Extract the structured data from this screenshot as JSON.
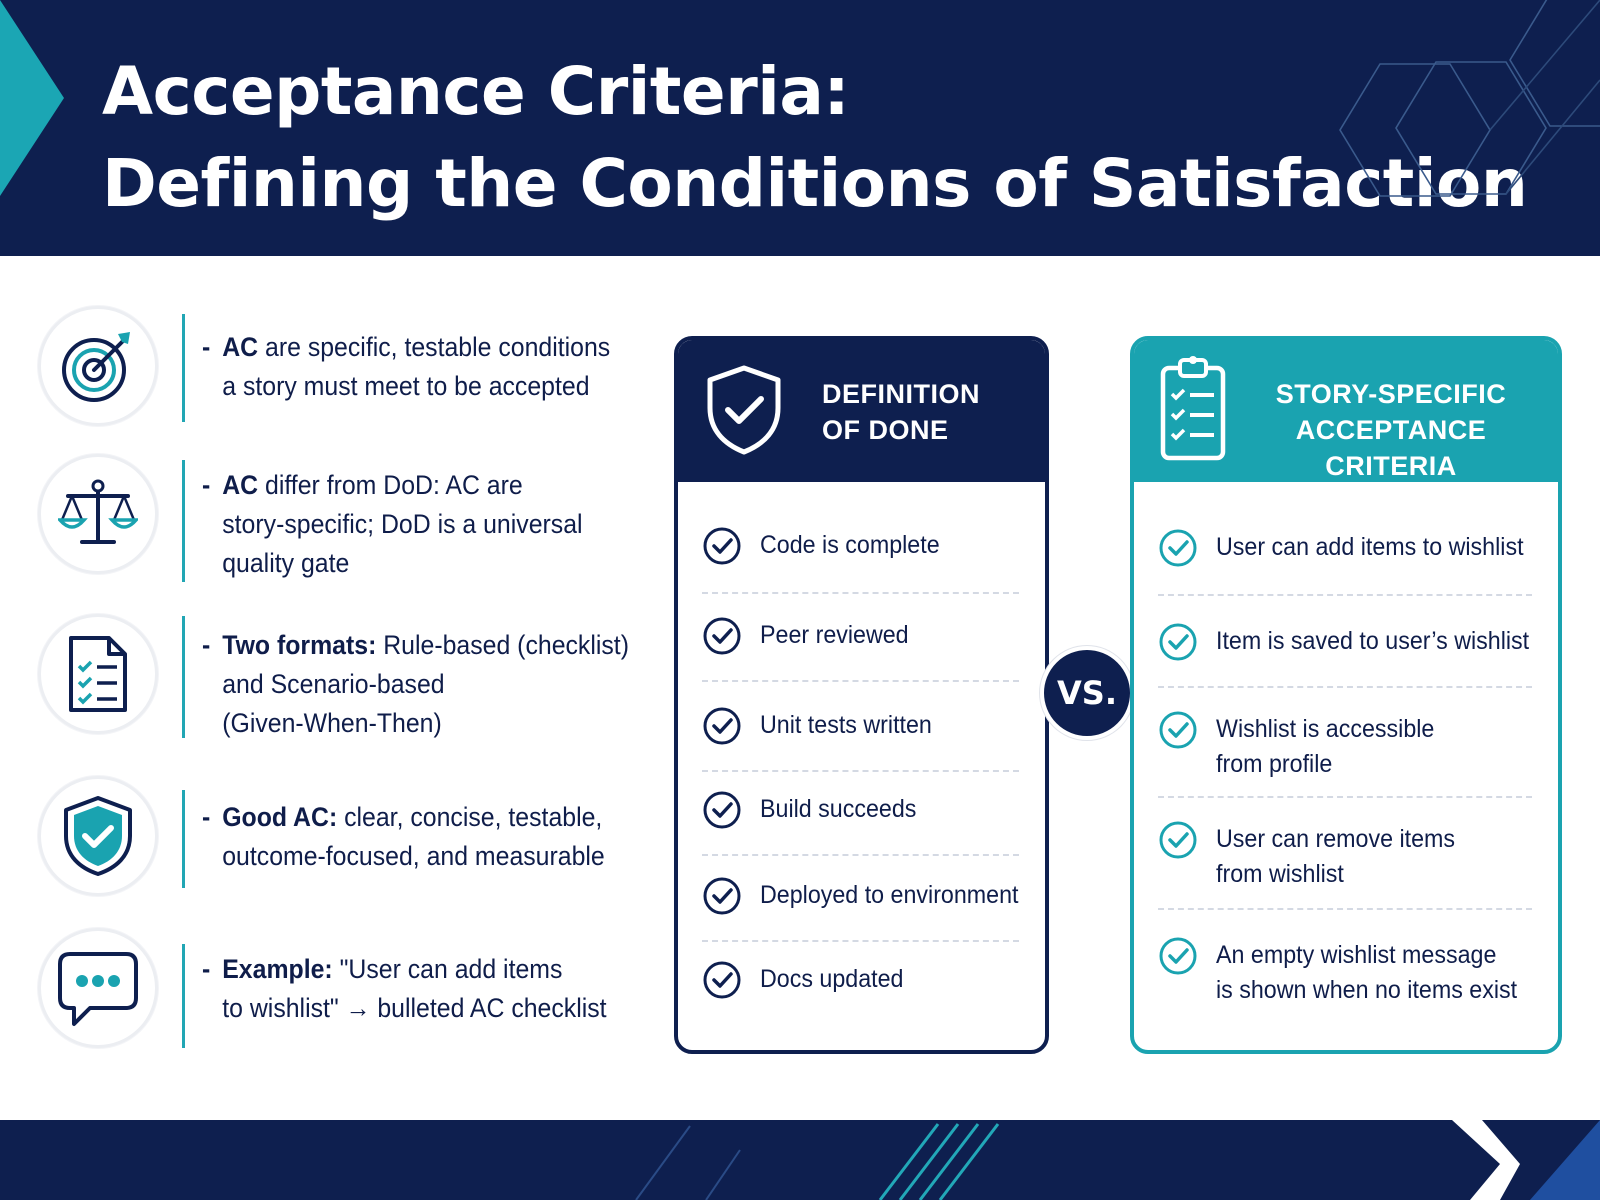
{
  "header": {
    "title_line1": "Acceptance Criteria:",
    "title_line2": "Defining the Conditions of Satisfaction"
  },
  "points": [
    {
      "icon": "target-icon",
      "bold": "AC",
      "text_line1": " are specific, testable conditions",
      "text_line2": "a story must meet to be accepted",
      "text_line3": ""
    },
    {
      "icon": "scales-icon",
      "bold": "AC",
      "text_line1": " differ from DoD: AC are",
      "text_line2": "story-specific; DoD is a universal",
      "text_line3": "quality gate"
    },
    {
      "icon": "checklist-document-icon",
      "bold": "Two formats:",
      "text_line1": " Rule-based (checklist)",
      "text_line2": "and Scenario-based",
      "text_line3": "(Given-When-Then)"
    },
    {
      "icon": "shield-check-icon",
      "bold": "Good AC:",
      "text_line1": " clear, concise, testable,",
      "text_line2": "outcome-focused, and measurable",
      "text_line3": ""
    },
    {
      "icon": "chat-bubble-icon",
      "bold": "Example:",
      "text_line1": " \"User can add items",
      "text_line2": "to wishlist\" → bulleted AC checklist",
      "text_line3": ""
    }
  ],
  "dod_card": {
    "title_line1": "DEFINITION",
    "title_line2": "OF DONE",
    "items": [
      "Code is complete",
      "Peer reviewed",
      "Unit tests written",
      "Build succeeds",
      "Deployed to environment",
      "Docs updated"
    ]
  },
  "vs_label": "VS.",
  "ac_card": {
    "title_line1": "STORY-SPECIFIC",
    "title_line2": "ACCEPTANCE CRITERIA",
    "items": [
      {
        "line1": "User can add items to wishlist",
        "line2": ""
      },
      {
        "line1": "Item is saved to user’s wishlist",
        "line2": ""
      },
      {
        "line1": "Wishlist is accessible",
        "line2": "from profile"
      },
      {
        "line1": "User can remove items",
        "line2": "from wishlist"
      },
      {
        "line1": "An empty wishlist message",
        "line2": "is shown when no items exist"
      }
    ]
  },
  "colors": {
    "navy": "#0e1f4f",
    "teal": "#1aa3b0",
    "white": "#ffffff"
  }
}
